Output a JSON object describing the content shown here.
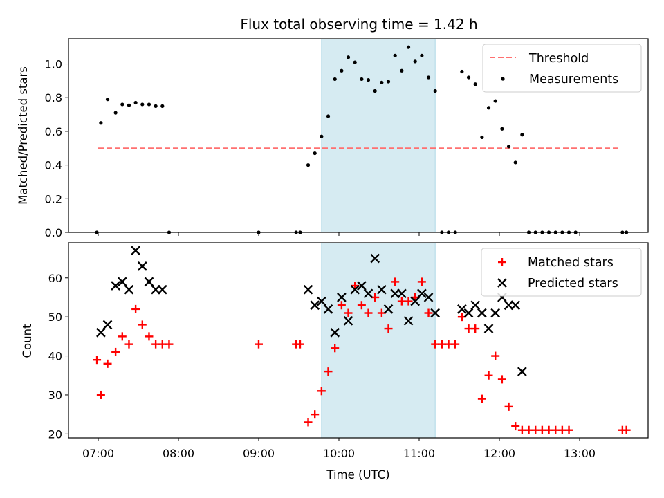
{
  "chart_data": {
    "type": "scatter",
    "title": "Flux total observing time = 1.42 h",
    "xlabel": "Time (UTC)",
    "x_ticks": [
      "07:00",
      "08:00",
      "09:00",
      "10:00",
      "11:00",
      "12:00",
      "13:00"
    ],
    "shaded_region": {
      "start": "09:47",
      "end": "11:12",
      "color": "#add8e6"
    },
    "panels": [
      {
        "ylabel": "Matched/Predicted stars",
        "ylim": [
          0,
          1.15
        ],
        "y_ticks": [
          "0.0",
          "0.2",
          "0.4",
          "0.6",
          "0.8",
          "1.0"
        ],
        "legend_position": "top-right",
        "threshold": {
          "name": "Threshold",
          "value": 0.5,
          "start": "07:00",
          "end": "13:30",
          "color": "#ff7070",
          "style": "dashed"
        },
        "series": [
          {
            "name": "Measurements",
            "marker": "dot",
            "color": "#000000",
            "points": [
              [
                "06:59",
                0
              ],
              [
                "07:02",
                0.65
              ],
              [
                "07:07",
                0.79
              ],
              [
                "07:13",
                0.71
              ],
              [
                "07:18",
                0.76
              ],
              [
                "07:23",
                0.755
              ],
              [
                "07:28",
                0.77
              ],
              [
                "07:33",
                0.76
              ],
              [
                "07:38",
                0.76
              ],
              [
                "07:43",
                0.75
              ],
              [
                "07:48",
                0.75
              ],
              [
                "07:53",
                0
              ],
              [
                "09:00",
                0
              ],
              [
                "09:28",
                0
              ],
              [
                "09:31",
                0
              ],
              [
                "09:37",
                0.4
              ],
              [
                "09:42",
                0.47
              ],
              [
                "09:47",
                0.57
              ],
              [
                "09:52",
                0.69
              ],
              [
                "09:57",
                0.91
              ],
              [
                "10:02",
                0.96
              ],
              [
                "10:07",
                1.04
              ],
              [
                "10:12",
                1.01
              ],
              [
                "10:17",
                0.91
              ],
              [
                "10:22",
                0.905
              ],
              [
                "10:27",
                0.84
              ],
              [
                "10:32",
                0.89
              ],
              [
                "10:37",
                0.895
              ],
              [
                "10:42",
                1.05
              ],
              [
                "10:47",
                0.96
              ],
              [
                "10:52",
                1.1
              ],
              [
                "10:57",
                1.015
              ],
              [
                "11:02",
                1.05
              ],
              [
                "11:07",
                0.92
              ],
              [
                "11:12",
                0.84
              ],
              [
                "11:17",
                0
              ],
              [
                "11:22",
                0
              ],
              [
                "11:27",
                0
              ],
              [
                "11:32",
                0.955
              ],
              [
                "11:37",
                0.92
              ],
              [
                "11:42",
                0.88
              ],
              [
                "11:47",
                0.565
              ],
              [
                "11:52",
                0.74
              ],
              [
                "11:57",
                0.78
              ],
              [
                "12:02",
                0.615
              ],
              [
                "12:07",
                0.51
              ],
              [
                "12:12",
                0.415
              ],
              [
                "12:17",
                0.58
              ],
              [
                "12:22",
                0
              ],
              [
                "12:27",
                0
              ],
              [
                "12:32",
                0
              ],
              [
                "12:37",
                0
              ],
              [
                "12:42",
                0
              ],
              [
                "12:47",
                0
              ],
              [
                "12:52",
                0
              ],
              [
                "12:57",
                0
              ],
              [
                "13:32",
                0
              ],
              [
                "13:35",
                0
              ]
            ]
          }
        ]
      },
      {
        "ylabel": "Count",
        "ylim": [
          19,
          69
        ],
        "y_ticks": [
          "20",
          "30",
          "40",
          "50",
          "60"
        ],
        "legend_position": "top-right",
        "series": [
          {
            "name": "Matched stars",
            "marker": "plus",
            "color": "#ff0000",
            "points": [
              [
                "06:59",
                39
              ],
              [
                "07:02",
                30
              ],
              [
                "07:07",
                38
              ],
              [
                "07:13",
                41
              ],
              [
                "07:18",
                45
              ],
              [
                "07:23",
                43
              ],
              [
                "07:28",
                52
              ],
              [
                "07:33",
                48
              ],
              [
                "07:38",
                45
              ],
              [
                "07:43",
                43
              ],
              [
                "07:48",
                43
              ],
              [
                "07:53",
                43
              ],
              [
                "09:00",
                43
              ],
              [
                "09:28",
                43
              ],
              [
                "09:31",
                43
              ],
              [
                "09:37",
                23
              ],
              [
                "09:42",
                25
              ],
              [
                "09:47",
                31
              ],
              [
                "09:52",
                36
              ],
              [
                "09:57",
                42
              ],
              [
                "10:02",
                53
              ],
              [
                "10:07",
                51
              ],
              [
                "10:12",
                58
              ],
              [
                "10:17",
                53
              ],
              [
                "10:22",
                51
              ],
              [
                "10:27",
                55
              ],
              [
                "10:32",
                51
              ],
              [
                "10:37",
                47
              ],
              [
                "10:42",
                59
              ],
              [
                "10:47",
                54
              ],
              [
                "10:52",
                54
              ],
              [
                "10:57",
                55
              ],
              [
                "11:02",
                59
              ],
              [
                "11:07",
                51
              ],
              [
                "11:12",
                43
              ],
              [
                "11:17",
                43
              ],
              [
                "11:22",
                43
              ],
              [
                "11:27",
                43
              ],
              [
                "11:32",
                50
              ],
              [
                "11:37",
                47
              ],
              [
                "11:42",
                47
              ],
              [
                "11:47",
                29
              ],
              [
                "11:52",
                35
              ],
              [
                "11:57",
                40
              ],
              [
                "12:02",
                34
              ],
              [
                "12:07",
                27
              ],
              [
                "12:12",
                22
              ],
              [
                "12:17",
                21
              ],
              [
                "12:22",
                21
              ],
              [
                "12:27",
                21
              ],
              [
                "12:32",
                21
              ],
              [
                "12:37",
                21
              ],
              [
                "12:42",
                21
              ],
              [
                "12:47",
                21
              ],
              [
                "12:52",
                21
              ],
              [
                "13:32",
                21
              ],
              [
                "13:35",
                21
              ]
            ]
          },
          {
            "name": "Predicted stars",
            "marker": "x",
            "color": "#000000",
            "points": [
              [
                "07:02",
                46
              ],
              [
                "07:07",
                48
              ],
              [
                "07:13",
                58
              ],
              [
                "07:18",
                59
              ],
              [
                "07:23",
                57
              ],
              [
                "07:28",
                67
              ],
              [
                "07:33",
                63
              ],
              [
                "07:38",
                59
              ],
              [
                "07:43",
                57
              ],
              [
                "07:48",
                57
              ],
              [
                "09:37",
                57
              ],
              [
                "09:42",
                53
              ],
              [
                "09:47",
                54
              ],
              [
                "09:52",
                52
              ],
              [
                "09:57",
                46
              ],
              [
                "10:02",
                55
              ],
              [
                "10:07",
                49
              ],
              [
                "10:12",
                57
              ],
              [
                "10:17",
                58
              ],
              [
                "10:22",
                56
              ],
              [
                "10:27",
                65
              ],
              [
                "10:32",
                57
              ],
              [
                "10:37",
                52
              ],
              [
                "10:42",
                56
              ],
              [
                "10:47",
                56
              ],
              [
                "10:52",
                49
              ],
              [
                "10:57",
                54
              ],
              [
                "11:02",
                56
              ],
              [
                "11:07",
                55
              ],
              [
                "11:12",
                51
              ],
              [
                "11:32",
                52
              ],
              [
                "11:37",
                51
              ],
              [
                "11:42",
                53
              ],
              [
                "11:47",
                51
              ],
              [
                "11:52",
                47
              ],
              [
                "11:57",
                51
              ],
              [
                "12:02",
                55
              ],
              [
                "12:07",
                53
              ],
              [
                "12:12",
                53
              ],
              [
                "12:17",
                36
              ]
            ]
          }
        ]
      }
    ]
  }
}
